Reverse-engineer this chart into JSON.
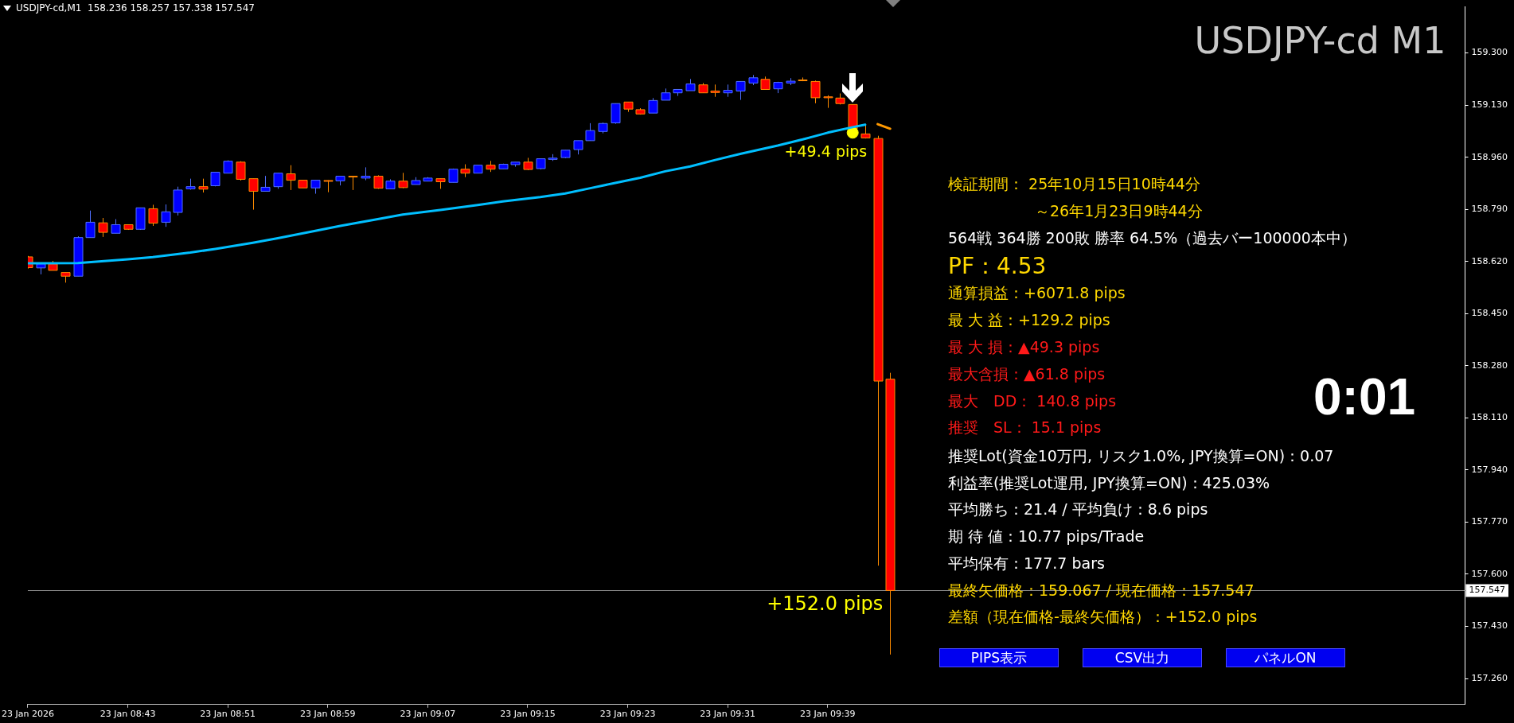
{
  "chart_data": {
    "type": "candlestick",
    "title": "USDJPY-cd M1",
    "subtitle": "USDJPY-cd,M1  158.236 158.257 157.338 157.547",
    "x": [
      "2026-01-23T08:35",
      "2026-01-23T08:36",
      "2026-01-23T08:37",
      "2026-01-23T08:38",
      "2026-01-23T08:39",
      "2026-01-23T08:40",
      "2026-01-23T08:41",
      "2026-01-23T08:42",
      "2026-01-23T08:43",
      "2026-01-23T08:44",
      "2026-01-23T08:45",
      "2026-01-23T08:46",
      "2026-01-23T08:47",
      "2026-01-23T08:48",
      "2026-01-23T08:49",
      "2026-01-23T08:50",
      "2026-01-23T08:51",
      "2026-01-23T08:52",
      "2026-01-23T08:53",
      "2026-01-23T08:54",
      "2026-01-23T08:55",
      "2026-01-23T08:56",
      "2026-01-23T08:57",
      "2026-01-23T08:58",
      "2026-01-23T08:59",
      "2026-01-23T09:00",
      "2026-01-23T09:01",
      "2026-01-23T09:02",
      "2026-01-23T09:03",
      "2026-01-23T09:04",
      "2026-01-23T09:05",
      "2026-01-23T09:06",
      "2026-01-23T09:07",
      "2026-01-23T09:08",
      "2026-01-23T09:09",
      "2026-01-23T09:10",
      "2026-01-23T09:11",
      "2026-01-23T09:12",
      "2026-01-23T09:13",
      "2026-01-23T09:14",
      "2026-01-23T09:15",
      "2026-01-23T09:16",
      "2026-01-23T09:17",
      "2026-01-23T09:18",
      "2026-01-23T09:19",
      "2026-01-23T09:20",
      "2026-01-23T09:21",
      "2026-01-23T09:22",
      "2026-01-23T09:23",
      "2026-01-23T09:24",
      "2026-01-23T09:25",
      "2026-01-23T09:26",
      "2026-01-23T09:27",
      "2026-01-23T09:28",
      "2026-01-23T09:29",
      "2026-01-23T09:30",
      "2026-01-23T09:31",
      "2026-01-23T09:32",
      "2026-01-23T09:33",
      "2026-01-23T09:34",
      "2026-01-23T09:35",
      "2026-01-23T09:36",
      "2026-01-23T09:37",
      "2026-01-23T09:38",
      "2026-01-23T09:39",
      "2026-01-23T09:40",
      "2026-01-23T09:41",
      "2026-01-23T09:42",
      "2026-01-23T09:43",
      "2026-01-23T09:44"
    ],
    "ohlc": [
      [
        158.635,
        158.638,
        158.597,
        158.6
      ],
      [
        158.599,
        158.612,
        158.578,
        158.612
      ],
      [
        158.612,
        158.622,
        158.591,
        158.591
      ],
      [
        158.584,
        158.584,
        158.551,
        158.572
      ],
      [
        158.572,
        158.702,
        158.572,
        158.698
      ],
      [
        158.698,
        158.786,
        158.698,
        158.748
      ],
      [
        158.746,
        158.762,
        158.7,
        158.715
      ],
      [
        158.712,
        158.758,
        158.712,
        158.74
      ],
      [
        158.74,
        158.74,
        158.723,
        158.725
      ],
      [
        158.725,
        158.795,
        158.723,
        158.795
      ],
      [
        158.792,
        158.805,
        158.736,
        158.745
      ],
      [
        158.748,
        158.806,
        158.733,
        158.782
      ],
      [
        158.78,
        158.864,
        158.77,
        158.853
      ],
      [
        158.857,
        158.89,
        158.854,
        158.864
      ],
      [
        158.864,
        158.89,
        158.845,
        158.856
      ],
      [
        158.867,
        158.911,
        158.865,
        158.911
      ],
      [
        158.908,
        158.95,
        158.908,
        158.947
      ],
      [
        158.944,
        158.947,
        158.884,
        158.888
      ],
      [
        158.89,
        158.89,
        158.789,
        158.849
      ],
      [
        158.849,
        158.899,
        158.849,
        158.862
      ],
      [
        158.864,
        158.908,
        158.857,
        158.908
      ],
      [
        158.906,
        158.934,
        158.853,
        158.885
      ],
      [
        158.885,
        158.885,
        158.86,
        158.86
      ],
      [
        158.86,
        158.885,
        158.841,
        158.885
      ],
      [
        158.884,
        158.885,
        158.846,
        158.883
      ],
      [
        158.883,
        158.898,
        158.868,
        158.898
      ],
      [
        158.898,
        158.899,
        158.853,
        158.896
      ],
      [
        158.892,
        158.927,
        158.885,
        158.898
      ],
      [
        158.898,
        158.901,
        158.857,
        158.859
      ],
      [
        158.857,
        158.888,
        158.857,
        158.882
      ],
      [
        158.882,
        158.909,
        158.859,
        158.861
      ],
      [
        158.871,
        158.895,
        158.871,
        158.884
      ],
      [
        158.882,
        158.895,
        158.882,
        158.892
      ],
      [
        158.89,
        158.89,
        158.857,
        158.88
      ],
      [
        158.878,
        158.923,
        158.878,
        158.921
      ],
      [
        158.921,
        158.937,
        158.895,
        158.908
      ],
      [
        158.908,
        158.934,
        158.908,
        158.934
      ],
      [
        158.934,
        158.948,
        158.912,
        158.921
      ],
      [
        158.922,
        158.939,
        158.922,
        158.937
      ],
      [
        158.936,
        158.944,
        158.929,
        158.944
      ],
      [
        158.944,
        158.958,
        158.918,
        158.92
      ],
      [
        158.923,
        158.955,
        158.92,
        158.955
      ],
      [
        158.953,
        158.97,
        158.948,
        158.957
      ],
      [
        158.959,
        158.983,
        158.957,
        158.983
      ],
      [
        158.985,
        159.014,
        158.969,
        159.014
      ],
      [
        159.014,
        159.071,
        159.014,
        159.047
      ],
      [
        159.044,
        159.073,
        159.038,
        159.07
      ],
      [
        159.072,
        159.135,
        159.069,
        159.135
      ],
      [
        159.14,
        159.14,
        159.108,
        159.117
      ],
      [
        159.115,
        159.12,
        159.099,
        159.101
      ],
      [
        159.104,
        159.153,
        159.104,
        159.145
      ],
      [
        159.146,
        159.184,
        159.146,
        159.17
      ],
      [
        159.17,
        159.181,
        159.16,
        159.181
      ],
      [
        159.177,
        159.215,
        159.177,
        159.199
      ],
      [
        159.196,
        159.202,
        159.17,
        159.17
      ],
      [
        159.176,
        159.197,
        159.157,
        159.171
      ],
      [
        159.17,
        159.197,
        159.157,
        159.178
      ],
      [
        159.176,
        159.207,
        159.147,
        159.207
      ],
      [
        159.202,
        159.228,
        159.195,
        159.219
      ],
      [
        159.214,
        159.223,
        159.181,
        159.181
      ],
      [
        159.183,
        159.206,
        159.169,
        159.204
      ],
      [
        159.202,
        159.218,
        159.195,
        159.208
      ],
      [
        159.212,
        159.22,
        159.208,
        159.21
      ],
      [
        159.207,
        159.21,
        159.136,
        159.154
      ],
      [
        159.157,
        159.162,
        159.121,
        159.154
      ],
      [
        159.153,
        159.168,
        159.132,
        159.135
      ],
      [
        159.132,
        159.132,
        159.049,
        159.053
      ],
      [
        159.036,
        159.063,
        159.021,
        159.023
      ],
      [
        159.021,
        159.03,
        157.628,
        158.23
      ],
      [
        158.236,
        158.257,
        157.338,
        157.547
      ]
    ],
    "colors": [
      "#ff0000",
      "#0000ff",
      "#ff0000",
      "#ff0000",
      "#0000ff",
      "#0000ff",
      "#ff0000",
      "#0000ff",
      "#ff0000",
      "#0000ff",
      "#ff0000",
      "#0000ff",
      "#0000ff",
      "#0000ff",
      "#ff0000",
      "#0000ff",
      "#0000ff",
      "#ff0000",
      "#ff0000",
      "#0000ff",
      "#0000ff",
      "#ff0000",
      "#ff0000",
      "#0000ff",
      "#ff0000",
      "#0000ff",
      "#ff0000",
      "#0000ff",
      "#ff0000",
      "#0000ff",
      "#ff0000",
      "#0000ff",
      "#0000ff",
      "#ff0000",
      "#0000ff",
      "#ff0000",
      "#0000ff",
      "#ff0000",
      "#0000ff",
      "#0000ff",
      "#ff0000",
      "#0000ff",
      "#0000ff",
      "#0000ff",
      "#0000ff",
      "#0000ff",
      "#0000ff",
      "#0000ff",
      "#ff0000",
      "#ff0000",
      "#0000ff",
      "#0000ff",
      "#0000ff",
      "#0000ff",
      "#ff0000",
      "#ff0000",
      "#0000ff",
      "#0000ff",
      "#0000ff",
      "#ff0000",
      "#0000ff",
      "#0000ff",
      "#ff0000",
      "#ff0000",
      "#ff0000",
      "#ff0000",
      "#ff0000",
      "#ff0000",
      "#ff0000",
      "#ff0000"
    ],
    "series": [
      {
        "type": "line",
        "color": "#00bfff",
        "x": [
          "2026-01-23T08:35",
          "2026-01-23T08:39",
          "2026-01-23T08:43",
          "2026-01-23T08:45",
          "2026-01-23T08:48",
          "2026-01-23T08:50",
          "2026-01-23T08:53",
          "2026-01-23T08:55",
          "2026-01-23T08:58",
          "2026-01-23T09:00",
          "2026-01-23T09:03",
          "2026-01-23T09:05",
          "2026-01-23T09:08",
          "2026-01-23T09:11",
          "2026-01-23T09:13",
          "2026-01-23T09:16",
          "2026-01-23T09:18",
          "2026-01-23T09:20",
          "2026-01-23T09:22",
          "2026-01-23T09:24",
          "2026-01-23T09:26",
          "2026-01-23T09:28",
          "2026-01-23T09:30",
          "2026-01-23T09:32",
          "2026-01-23T09:35",
          "2026-01-23T09:37",
          "2026-01-23T09:39",
          "2026-01-23T09:41",
          "2026-01-23T09:42"
        ],
        "values": [
          158.614,
          158.615,
          158.627,
          158.634,
          158.649,
          158.661,
          158.681,
          158.696,
          158.72,
          158.736,
          158.758,
          158.773,
          158.788,
          158.804,
          158.816,
          158.83,
          158.842,
          158.859,
          158.876,
          158.893,
          158.914,
          158.93,
          158.951,
          158.971,
          158.998,
          159.018,
          159.04,
          159.058,
          159.066
        ]
      },
      {
        "type": "line",
        "color": "#ff9900",
        "x": [
          "2026-01-23T09:43",
          "2026-01-23T09:44"
        ],
        "values": [
          159.068,
          159.053
        ]
      },
      {
        "type": "scatter",
        "color": "#ffff00",
        "x": [
          "2026-01-23T09:41"
        ],
        "values": [
          159.04
        ]
      }
    ],
    "xlim": [
      "2026-01-23T08:35",
      "2026-01-23T10:30"
    ],
    "xticks": [
      {
        "value": "2026-01-23T08:35",
        "label": "23 Jan 2026"
      },
      {
        "value": "2026-01-23T08:43",
        "label": "23 Jan 08:43"
      },
      {
        "value": "2026-01-23T08:51",
        "label": "23 Jan 08:51"
      },
      {
        "value": "2026-01-23T08:59",
        "label": "23 Jan 08:59"
      },
      {
        "value": "2026-01-23T09:07",
        "label": "23 Jan 09:07"
      },
      {
        "value": "2026-01-23T09:15",
        "label": "23 Jan 09:15"
      },
      {
        "value": "2026-01-23T09:23",
        "label": "23 Jan 09:23"
      },
      {
        "value": "2026-01-23T09:31",
        "label": "23 Jan 09:31"
      },
      {
        "value": "2026-01-23T09:39",
        "label": "23 Jan 09:39"
      }
    ],
    "ylim": [
      157.175,
      159.452
    ],
    "yticks": [
      {
        "value": 159.3,
        "label": "159.300"
      },
      {
        "value": 159.13,
        "label": "159.130"
      },
      {
        "value": 158.96,
        "label": "158.960"
      },
      {
        "value": 158.79,
        "label": "158.790"
      },
      {
        "value": 158.62,
        "label": "158.620"
      },
      {
        "value": 158.45,
        "label": "158.450"
      },
      {
        "value": 158.28,
        "label": "158.280"
      },
      {
        "value": 158.11,
        "label": "158.110"
      },
      {
        "value": 157.94,
        "label": "157.940"
      },
      {
        "value": 157.77,
        "label": "157.770"
      },
      {
        "value": 157.6,
        "label": "157.600"
      },
      {
        "value": 157.43,
        "label": "157.430"
      },
      {
        "value": 157.26,
        "label": "157.260"
      }
    ],
    "ref_lines": [
      {
        "axis": "y",
        "value": 157.547,
        "label": "157.547",
        "color": "#8c8c8c"
      }
    ],
    "annotations": [
      {
        "text": "+49.4 pips",
        "x": "2026-01-23T09:41",
        "y": 159.04
      },
      {
        "text": "+152.0 pips",
        "x": "2026-01-23T09:44",
        "y": 157.547
      },
      "検証期間： 25年10月15日10時44分",
      "～26年1月23日9時44分",
      "564戦 364勝 200敗 勝率 64.5%（過去バー100000本中）",
      "PF：4.53",
      "通算損益：+6071.8 pips",
      "最 大 益：+129.2 pips",
      "最 大 損：▲49.3 pips",
      "最大含損：▲61.8 pips",
      "最大　DD： 140.8 pips",
      "推奨　SL： 15.1 pips",
      "推奨Lot(資金10万円, リスク1.0%, JPY換算=ON)：0.07",
      "利益率(推奨Lot運用, JPY換算=ON)：425.03%",
      "平均勝ち：21.4 / 平均負け：8.6 pips",
      "期 待 値：10.77 pips/Trade",
      "平均保有：177.7 bars",
      "最終矢価格：159.067 / 現在価格：157.547",
      "差額（現在価格-最終矢価格）：+152.0 pips",
      "0:01",
      "PIPS表示",
      "CSV出力",
      "パネルON"
    ]
  }
}
